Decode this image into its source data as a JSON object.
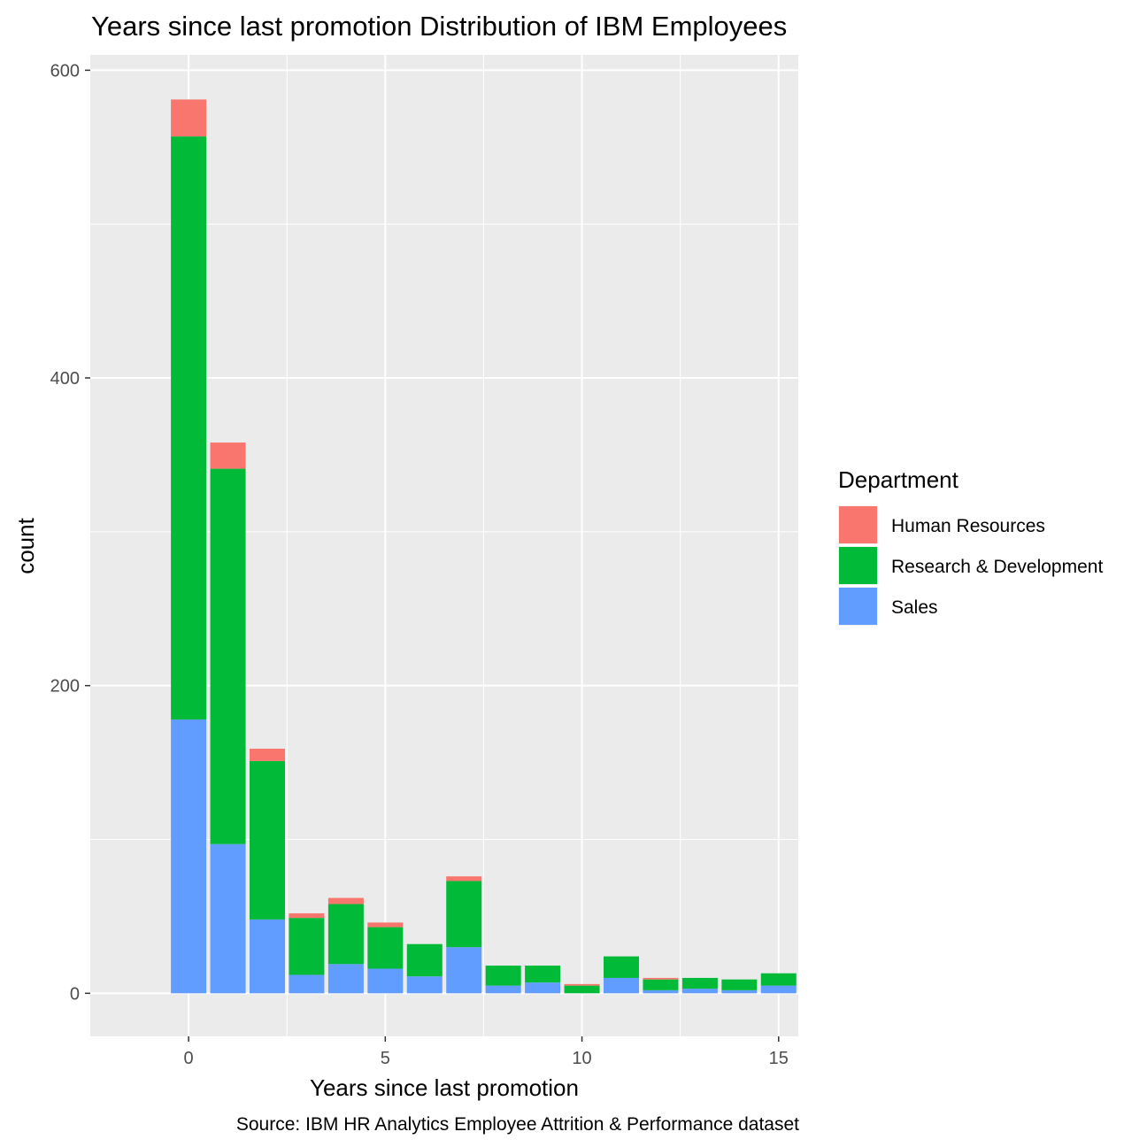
{
  "chart_data": {
    "type": "bar",
    "stacked": true,
    "title": "Years since last promotion Distribution of IBM Employees",
    "xlabel": "Years since last promotion",
    "ylabel": "count",
    "caption": "Source: IBM HR Analytics Employee Attrition & Performance dataset",
    "legend_title": "Department",
    "legend_position": "right",
    "grid": true,
    "x": [
      0,
      1,
      2,
      3,
      4,
      5,
      6,
      7,
      8,
      9,
      10,
      11,
      12,
      13,
      14,
      15
    ],
    "xlim": [
      -2.5,
      15.5
    ],
    "ylim": [
      -28,
      610
    ],
    "x_ticks": [
      0,
      5,
      10,
      15
    ],
    "x_tick_labels": [
      "0",
      "5",
      "10",
      "15"
    ],
    "y_ticks": [
      0,
      200,
      400,
      600
    ],
    "y_tick_labels": [
      "0",
      "200",
      "400",
      "600"
    ],
    "series": [
      {
        "name": "Sales",
        "color": "#619CFF",
        "values": [
          178,
          97,
          48,
          12,
          19,
          16,
          11,
          30,
          5,
          7,
          0,
          10,
          2,
          3,
          2,
          5
        ]
      },
      {
        "name": "Research & Development",
        "color": "#00BA38",
        "values": [
          379,
          244,
          103,
          37,
          39,
          27,
          21,
          43,
          13,
          11,
          5,
          14,
          7,
          7,
          7,
          8
        ]
      },
      {
        "name": "Human Resources",
        "color": "#F8766D",
        "values": [
          24,
          17,
          8,
          3,
          4,
          3,
          0,
          3,
          0,
          0,
          1,
          0,
          1,
          0,
          0,
          0
        ]
      }
    ],
    "legend_order": [
      "Human Resources",
      "Research & Development",
      "Sales"
    ],
    "panel_color": "#EBEBEB",
    "grid_color": "#FFFFFF"
  }
}
